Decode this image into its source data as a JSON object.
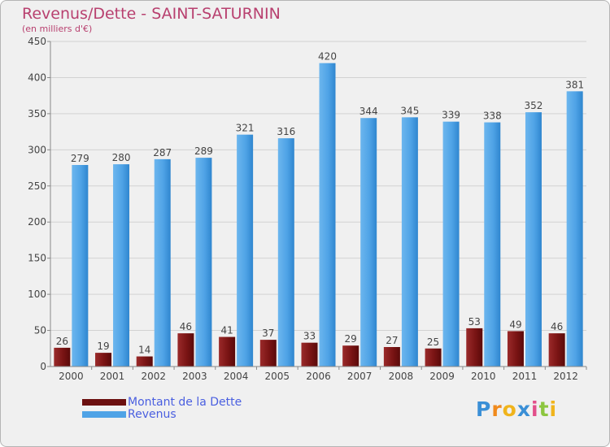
{
  "header": {
    "title": "Revenus/Dette - SAINT-SATURNIN",
    "subtitle": "(en milliers d'€)"
  },
  "chart_data": {
    "type": "bar",
    "title": "Revenus/Dette - SAINT-SATURNIN",
    "subtitle": "(en milliers d'€)",
    "xlabel": "",
    "ylabel": "",
    "ylim": [
      0,
      450
    ],
    "yticks": [
      0,
      50,
      100,
      150,
      200,
      250,
      300,
      350,
      400,
      450
    ],
    "grid": true,
    "legend_position": "bottom-left",
    "categories": [
      "2000",
      "2001",
      "2002",
      "2003",
      "2004",
      "2005",
      "2006",
      "2007",
      "2008",
      "2009",
      "2010",
      "2011",
      "2012"
    ],
    "series": [
      {
        "name": "Montant de la Dette",
        "color": "#7a1414",
        "values": [
          26,
          19,
          14,
          46,
          41,
          37,
          33,
          29,
          27,
          25,
          53,
          49,
          46
        ]
      },
      {
        "name": "Revenus",
        "color": "#4fa3e6",
        "values": [
          279,
          280,
          287,
          289,
          321,
          316,
          420,
          344,
          345,
          339,
          338,
          352,
          381
        ]
      }
    ]
  },
  "legend": {
    "items": [
      {
        "label": "Montant de la Dette",
        "color": "#6b0f0f"
      },
      {
        "label": "Revenus",
        "color": "#4fa3e6"
      }
    ]
  },
  "logo": {
    "text": "Proxiti",
    "letters": [
      "P",
      "r",
      "o",
      "x",
      "i",
      "t",
      "i"
    ],
    "colors": [
      "#3a8fd6",
      "#f08a1c",
      "#f0b41c",
      "#3a8fd6",
      "#e24f8a",
      "#8cc63f",
      "#f0b41c"
    ]
  }
}
